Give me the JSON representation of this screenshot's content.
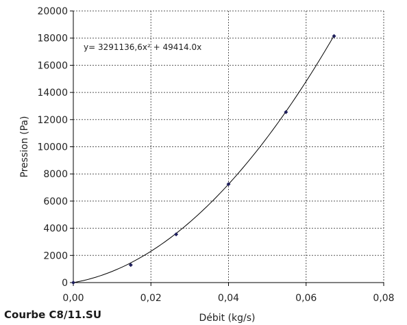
{
  "caption": "Courbe C8/11.SU",
  "chart_data": {
    "type": "scatter",
    "xlabel": "Débit (kg/s)",
    "ylabel": "Pression (Pa)",
    "xlim": [
      0,
      0.08
    ],
    "ylim": [
      0,
      20000
    ],
    "x_ticks": [
      "0,00",
      "0,02",
      "0,04",
      "0,06",
      "0,08"
    ],
    "y_ticks": [
      "0",
      "2000",
      "4000",
      "6000",
      "8000",
      "10000",
      "12000",
      "14000",
      "16000",
      "18000",
      "20000"
    ],
    "grid": true,
    "points": [
      {
        "x": 0.0,
        "y": 0
      },
      {
        "x": 0.0148,
        "y": 1300
      },
      {
        "x": 0.0265,
        "y": 3550
      },
      {
        "x": 0.04,
        "y": 7250
      },
      {
        "x": 0.0548,
        "y": 12550
      },
      {
        "x": 0.0672,
        "y": 18150
      }
    ],
    "trendline": {
      "type": "polynomial",
      "equation": "y= 3291136,6x² + 49414.0x",
      "a": 3291136.6,
      "b": 49414.0,
      "x_range": [
        0,
        0.0672
      ]
    },
    "colors": {
      "marker": "#1f1f5c",
      "line": "#000000",
      "grid": "#555555"
    }
  }
}
